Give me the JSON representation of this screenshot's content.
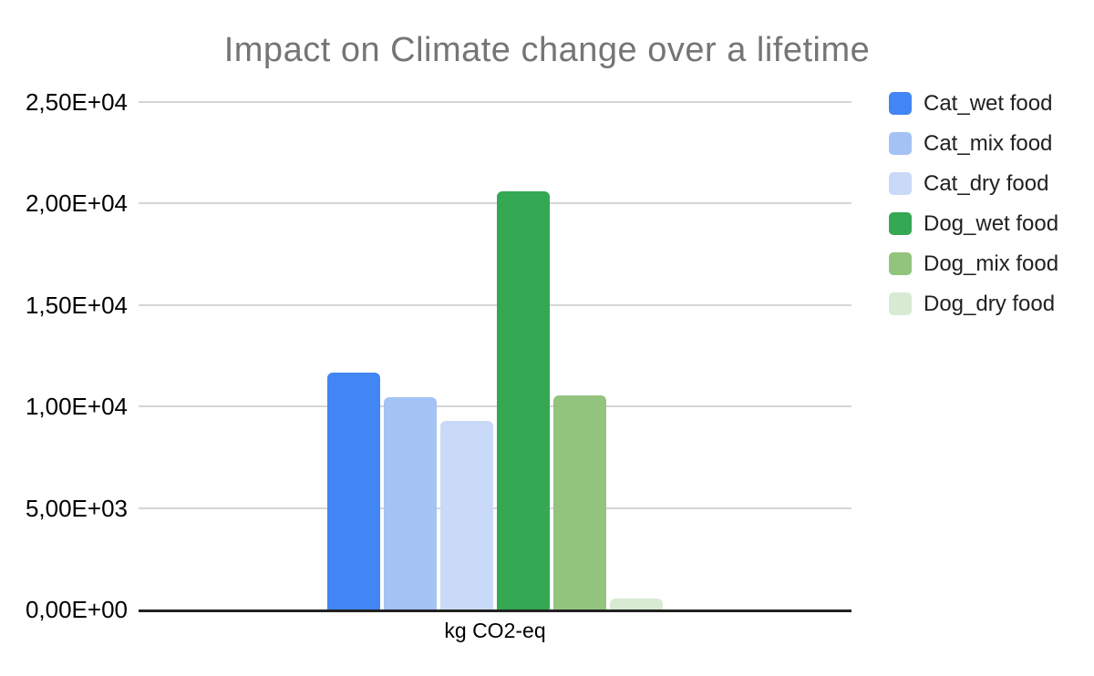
{
  "title": "Impact on Climate change over a lifetime",
  "colors": {
    "title_text": "#757575",
    "axis_line": "#222222",
    "gridline": "#d6d6d6",
    "tick_text": "#000000",
    "legend_text": "#212121",
    "background": "#ffffff",
    "cat_wet": "#4285F4",
    "cat_mix": "#A4C2F4",
    "cat_dry": "#C9DAF8",
    "dog_wet": "#34A853",
    "dog_mix": "#93C47D",
    "dog_dry": "#D9EAD3"
  },
  "chart_data": {
    "type": "bar",
    "title": "Impact on Climate change over a lifetime",
    "categories": [
      "kg CO2-eq"
    ],
    "series": [
      {
        "name": "Cat_wet food",
        "color": "#4285F4",
        "values": [
          11650
        ]
      },
      {
        "name": "Cat_mix food",
        "color": "#A4C2F4",
        "values": [
          10480
        ]
      },
      {
        "name": "Cat_dry food",
        "color": "#C9DAF8",
        "values": [
          9300
        ]
      },
      {
        "name": "Dog_wet food",
        "color": "#34A853",
        "values": [
          20600
        ]
      },
      {
        "name": "Dog_mix food",
        "color": "#93C47D",
        "values": [
          10560
        ]
      },
      {
        "name": "Dog_dry food",
        "color": "#D9EAD3",
        "values": [
          550
        ]
      }
    ],
    "xlabel": "kg CO2-eq",
    "ylabel": "",
    "ylim": [
      0,
      25000
    ],
    "y_tick_values": [
      0,
      5000,
      10000,
      15000,
      20000,
      25000
    ],
    "y_tick_labels": [
      "0,00E+00",
      "5,00E+03",
      "1,00E+04",
      "1,50E+04",
      "2,00E+04",
      "2,50E+04"
    ],
    "grid": true,
    "legend_position": "right"
  }
}
